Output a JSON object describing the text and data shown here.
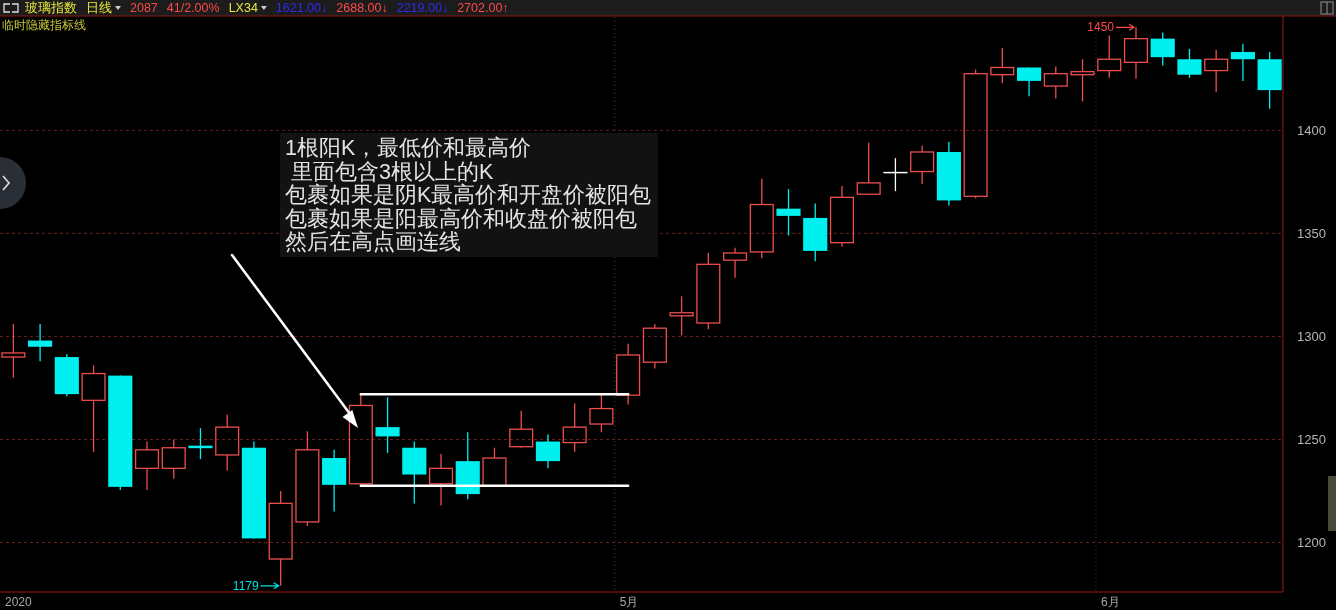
{
  "chart_data": {
    "type": "candlestick",
    "categories": [
      "2020",
      null,
      null,
      null,
      null,
      null,
      null,
      null,
      null,
      null,
      null,
      null,
      null,
      null,
      null,
      null,
      null,
      null,
      null,
      null,
      null,
      null,
      null,
      "5月",
      null,
      null,
      null,
      null,
      null,
      null,
      null,
      null,
      null,
      null,
      null,
      null,
      null,
      null,
      null,
      null,
      null,
      "6月",
      null,
      null,
      null,
      null,
      null,
      null
    ],
    "series": [
      {
        "type": "candlestick",
        "ohlc": [
          [
            1290,
            1306,
            1280,
            1292
          ],
          [
            1298,
            1306,
            1288,
            1295
          ],
          [
            1290,
            1291.5,
            1271,
            1272
          ],
          [
            1269,
            1286,
            1244,
            1282
          ],
          [
            1281,
            1281,
            1225.5,
            1227
          ],
          [
            1236,
            1249,
            1225.5,
            1245
          ],
          [
            1236,
            1250,
            1231,
            1246
          ],
          [
            1247,
            1255.5,
            1240.5,
            1246.5
          ],
          [
            1242.5,
            1262,
            1235,
            1256
          ],
          [
            1246,
            1249,
            1202,
            1202
          ],
          [
            1192,
            1225,
            1179,
            1219
          ],
          [
            1210,
            1254,
            1208,
            1245
          ],
          [
            1241,
            1245,
            1215,
            1228
          ],
          [
            1228.5,
            1272.5,
            1227.5,
            1266.5
          ],
          [
            1256,
            1270.5,
            1243.5,
            1251.5
          ],
          [
            1246,
            1249,
            1219,
            1233
          ],
          [
            1228.5,
            1243,
            1218,
            1236
          ],
          [
            1239.5,
            1253.5,
            1221,
            1223.5
          ],
          [
            1227.5,
            1246,
            1227.5,
            1241
          ],
          [
            1246.5,
            1264,
            1246,
            1255
          ],
          [
            1249,
            1252.5,
            1236,
            1239.5
          ],
          [
            1248.5,
            1267.5,
            1244,
            1256
          ],
          [
            1257.5,
            1272,
            1253.5,
            1265
          ],
          [
            1271.5,
            1296.5,
            1267,
            1291
          ],
          [
            1287.5,
            1306,
            1284.5,
            1304
          ],
          [
            1310,
            1319.5,
            1300.5,
            1311.5
          ],
          [
            1306.5,
            1340.5,
            1303.5,
            1335
          ],
          [
            1337,
            1343,
            1328.5,
            1340.5
          ],
          [
            1341,
            1376.5,
            1338,
            1364
          ],
          [
            1362,
            1371.5,
            1349,
            1358.5
          ],
          [
            1357.5,
            1364.5,
            1336.5,
            1341.5
          ],
          [
            1345.5,
            1373,
            1343.5,
            1367.5
          ],
          [
            1369,
            1394,
            1369,
            1374.5
          ],
          [
            1379.5,
            1386.5,
            1370.5,
            1379.5
          ],
          [
            1380,
            1392.5,
            1374,
            1389.5
          ],
          [
            1389.5,
            1394.5,
            1363.5,
            1366
          ],
          [
            1368,
            1429.5,
            1367,
            1427.5
          ],
          [
            1427,
            1440,
            1423,
            1430.5
          ],
          [
            1430.5,
            1430.5,
            1416.5,
            1424
          ],
          [
            1421.5,
            1431,
            1415.5,
            1427.5
          ],
          [
            1427,
            1434.5,
            1414,
            1428.5
          ],
          [
            1429,
            1446,
            1425.5,
            1434.5
          ],
          [
            1433,
            1450,
            1425,
            1444.5
          ],
          [
            1444.5,
            1447.5,
            1431.5,
            1435.5
          ],
          [
            1434.5,
            1439.5,
            1425.5,
            1427
          ],
          [
            1429,
            1439,
            1418.5,
            1434.5
          ],
          [
            1438,
            1442,
            1424,
            1434.5
          ],
          [
            1434.5,
            1438,
            1410.5,
            1419.5
          ]
        ],
        "colors": [
          "#ec4e4e",
          "#00f0f0",
          "#00f0f0",
          "#ec4e4e",
          "#00f0f0",
          "#ec4e4e",
          "#ec4e4e",
          "#00f0f0",
          "#ec4e4e",
          "#00f0f0",
          "#ec4e4e",
          "#ec4e4e",
          "#00f0f0",
          "#ec4e4e",
          "#00f0f0",
          "#00f0f0",
          "#ec4e4e",
          "#00f0f0",
          "#ec4e4e",
          "#ec4e4e",
          "#00f0f0",
          "#ec4e4e",
          "#ec4e4e",
          "#ec4e4e",
          "#ec4e4e",
          "#ec4e4e",
          "#ec4e4e",
          "#ec4e4e",
          "#ec4e4e",
          "#00f0f0",
          "#00f0f0",
          "#ec4e4e",
          "#ec4e4e",
          "#ffffff",
          "#ec4e4e",
          "#00f0f0",
          "#ec4e4e",
          "#ec4e4e",
          "#00f0f0",
          "#ec4e4e",
          "#ec4e4e",
          "#ec4e4e",
          "#ec4e4e",
          "#00f0f0",
          "#00f0f0",
          "#ec4e4e",
          "#00f0f0",
          "#00f0f0"
        ]
      },
      {
        "type": "line",
        "color": "#ffffff",
        "values": [
          null,
          null,
          null,
          null,
          null,
          null,
          null,
          null,
          null,
          null,
          null,
          null,
          null,
          1272,
          1272,
          1272,
          1272,
          1272,
          1272,
          1272,
          1272,
          1272,
          1272,
          1272,
          null,
          null,
          null,
          null,
          null,
          null,
          null,
          null,
          null,
          null,
          null,
          null,
          null,
          null,
          null,
          null,
          null,
          null,
          null,
          null,
          null,
          null,
          null,
          null
        ]
      },
      {
        "type": "line",
        "color": "#ffffff",
        "values": [
          null,
          null,
          null,
          null,
          null,
          null,
          null,
          null,
          null,
          null,
          null,
          null,
          null,
          1227.5,
          1227.5,
          1227.5,
          1227.5,
          1227.5,
          1227.5,
          1227.5,
          1227.5,
          1227.5,
          1227.5,
          1227.5,
          null,
          null,
          null,
          null,
          null,
          null,
          null,
          null,
          null,
          null,
          null,
          null,
          null,
          null,
          null,
          null,
          null,
          null,
          null,
          null,
          null,
          null,
          null,
          null
        ]
      }
    ],
    "ylim": [
      1176,
      1455
    ],
    "yticks": [
      1200,
      1250,
      1300,
      1350,
      1400
    ],
    "grid": true,
    "annotations": [
      "玻璃指数",
      "日线",
      "2087",
      "41/2.00%",
      "LX34",
      "1621.00↓",
      "2688.00↓",
      "2219.00↓",
      "2702.00↑",
      "临时隐藏指标线",
      "1根阳K，最低价和最高价",
      " 里面包含3根以上的K",
      "包裹如果是阴K最高价和开盘价被阳包",
      "包裹如果是阳最高价和收盘价被阳包",
      "然后在高点画连线",
      "1450",
      "1179"
    ]
  }
}
